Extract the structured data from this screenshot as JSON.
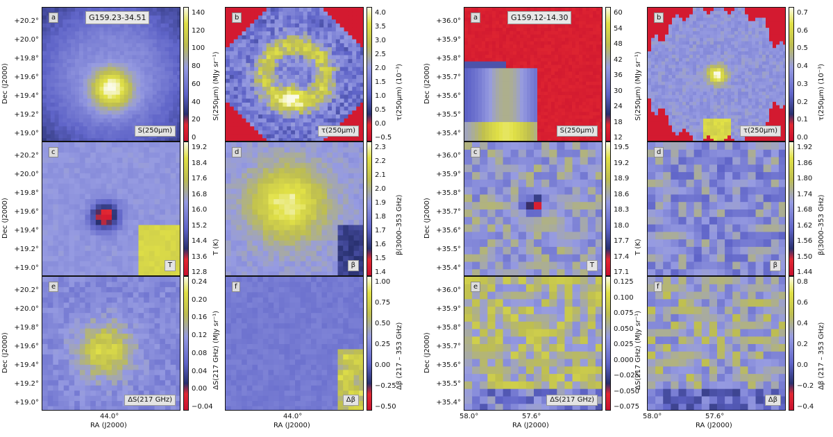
{
  "chart_data": [
    {
      "type": "heatmap",
      "title": "G159.23-34.51",
      "xlabel": "RA (J2000)",
      "ylabel": "Dec (J2000)",
      "y_ticks": [
        "+20.2°",
        "+20.0°",
        "+19.8°",
        "+19.6°",
        "+19.4°",
        "+19.2°",
        "+19.0°"
      ],
      "x_ticks": [
        "44.0°"
      ],
      "panels": [
        {
          "letter": "a",
          "map_label": "S(250μm)",
          "colorbar_label": "S(250μm) (MJy sr⁻¹)",
          "colorbar_ticks": [
            "140",
            "120",
            "100",
            "80",
            "60",
            "40",
            "20",
            "0"
          ],
          "range": [
            -10,
            150
          ]
        },
        {
          "letter": "b",
          "map_label": "τ(250μm)",
          "colorbar_label": "τ(250μm) (10⁻³)",
          "colorbar_ticks": [
            "4.0",
            "3.5",
            "3.0",
            "2.5",
            "2.0",
            "1.5",
            "1.0",
            "0.5",
            "0.0",
            "−0.5"
          ],
          "range": [
            -0.6,
            4.1
          ]
        },
        {
          "letter": "c",
          "map_label": "T",
          "colorbar_label": "T (K)",
          "colorbar_ticks": [
            "19.2",
            "18.4",
            "17.6",
            "16.8",
            "16.0",
            "15.2",
            "14.4",
            "13.6",
            "12.8"
          ],
          "range": [
            12.8,
            19.5
          ]
        },
        {
          "letter": "d",
          "map_label": "β",
          "colorbar_label": "β(3000–353 GHz)",
          "colorbar_ticks": [
            "2.3",
            "2.2",
            "2.1",
            "2.0",
            "1.9",
            "1.8",
            "1.7",
            "1.6",
            "1.5",
            "1.4"
          ],
          "range": [
            1.35,
            2.3
          ]
        },
        {
          "letter": "e",
          "map_label": "ΔS(217 GHz)",
          "colorbar_label": "ΔS(217 GHz) (MJy sr⁻¹)",
          "colorbar_ticks": [
            "0.24",
            "0.20",
            "0.16",
            "0.12",
            "0.08",
            "0.04",
            "0.00",
            "−0.04"
          ],
          "range": [
            -0.07,
            0.26
          ]
        },
        {
          "letter": "f",
          "map_label": "Δβ",
          "colorbar_label": "Δβ (217 – 353 GHz)",
          "colorbar_ticks": [
            "1.00",
            "0.75",
            "0.50",
            "0.25",
            "0.00",
            "−0.25",
            "−0.50"
          ],
          "range": [
            -0.6,
            1.1
          ]
        }
      ]
    },
    {
      "type": "heatmap",
      "title": "G159.12-14.30",
      "xlabel": "RA (J2000)",
      "ylabel": "Dec (J2000)",
      "y_ticks": [
        "+36.0°",
        "+35.9°",
        "+35.8°",
        "+35.7°",
        "+35.6°",
        "+35.5°",
        "+35.4°"
      ],
      "x_ticks": [
        "58.0°",
        "57.6°"
      ],
      "panels": [
        {
          "letter": "a",
          "map_label": "S(250μm)",
          "colorbar_label": "S(250μm) (MJy sr⁻¹)",
          "colorbar_ticks": [
            "60",
            "54",
            "48",
            "42",
            "36",
            "30",
            "24",
            "18",
            "12"
          ],
          "range": [
            8,
            60
          ]
        },
        {
          "letter": "b",
          "map_label": "τ(250μm)",
          "colorbar_label": "τ(250μm) (10⁻³)",
          "colorbar_ticks": [
            "0.7",
            "0.6",
            "0.5",
            "0.4",
            "0.3",
            "0.2",
            "0.1",
            "0.0"
          ],
          "range": [
            -0.1,
            0.72
          ]
        },
        {
          "letter": "c",
          "map_label": "T",
          "colorbar_label": "T (K)",
          "colorbar_ticks": [
            "19.5",
            "19.2",
            "18.9",
            "18.6",
            "18.3",
            "18.0",
            "17.7",
            "17.4",
            "17.1"
          ],
          "range": [
            17.1,
            19.7
          ]
        },
        {
          "letter": "d",
          "map_label": "β",
          "colorbar_label": "β(3000–353 GHz)",
          "colorbar_ticks": [
            "1.92",
            "1.86",
            "1.80",
            "1.74",
            "1.68",
            "1.62",
            "1.56",
            "1.50",
            "1.44"
          ],
          "range": [
            1.4,
            1.96
          ]
        },
        {
          "letter": "e",
          "map_label": "ΔS(217 GHz)",
          "colorbar_label": "ΔS(217 GHz) (MJy sr⁻¹)",
          "colorbar_ticks": [
            "0.125",
            "0.100",
            "0.075",
            "0.050",
            "0.025",
            "0.000",
            "−0.025",
            "−0.050",
            "−0.075"
          ],
          "range": [
            -0.075,
            0.13
          ]
        },
        {
          "letter": "f",
          "map_label": "Δβ",
          "colorbar_label": "Δβ (217 – 353 GHz)",
          "colorbar_ticks": [
            "0.8",
            "0.6",
            "0.4",
            "0.2",
            "0.0",
            "−0.2",
            "−0.4"
          ],
          "range": [
            -0.5,
            0.95
          ]
        }
      ]
    }
  ],
  "colors": {
    "low": "#c8102e",
    "mid": "#7a7fd6",
    "high": "#f4f4a0",
    "dark": "#1a2a5e"
  }
}
